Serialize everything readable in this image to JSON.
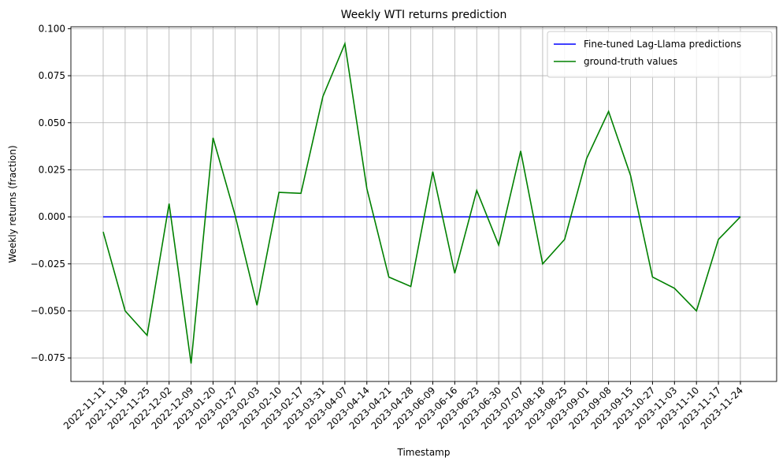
{
  "chart_data": {
    "type": "line",
    "title": "Weekly WTI returns prediction",
    "xlabel": "Timestamp",
    "ylabel": "Weekly returns (fraction)",
    "categories": [
      "2022-11-11",
      "2022-11-18",
      "2022-11-25",
      "2022-12-02",
      "2022-12-09",
      "2023-01-20",
      "2023-01-27",
      "2023-02-03",
      "2023-02-10",
      "2023-02-17",
      "2023-03-31",
      "2023-04-07",
      "2023-04-14",
      "2023-04-21",
      "2023-04-28",
      "2023-06-09",
      "2023-06-16",
      "2023-06-23",
      "2023-06-30",
      "2023-07-07",
      "2023-08-18",
      "2023-08-25",
      "2023-09-01",
      "2023-09-08",
      "2023-09-15",
      "2023-10-27",
      "2023-11-03",
      "2023-11-10",
      "2023-11-17",
      "2023-11-24"
    ],
    "series": [
      {
        "name": "Fine-tuned Lag-Llama predictions",
        "color": "#0000ff",
        "values": [
          0,
          0,
          0,
          0,
          0,
          0,
          0,
          0,
          0,
          0,
          0,
          0,
          0,
          0,
          0,
          0,
          0,
          0,
          0,
          0,
          0,
          0,
          0,
          0,
          0,
          0,
          0,
          0,
          0,
          0
        ]
      },
      {
        "name": "ground-truth values",
        "color": "#008000",
        "values": [
          -0.008,
          -0.05,
          -0.063,
          0.007,
          -0.078,
          0.042,
          0.001,
          -0.047,
          0.013,
          0.0125,
          0.064,
          0.092,
          0.015,
          -0.032,
          -0.037,
          0.024,
          -0.03,
          0.014,
          -0.015,
          0.035,
          -0.025,
          -0.012,
          0.031,
          0.056,
          0.022,
          -0.032,
          -0.038,
          -0.05,
          -0.012,
          0.0
        ]
      }
    ],
    "ylim": [
      -0.0875,
      0.101
    ],
    "yticks": [
      {
        "value": -0.075,
        "label": "−0.075"
      },
      {
        "value": -0.05,
        "label": "−0.050"
      },
      {
        "value": -0.025,
        "label": "−0.025"
      },
      {
        "value": 0,
        "label": "0.000"
      },
      0.025,
      {
        "value": 0.05,
        "label": "0.050"
      },
      0.075,
      {
        "value": 0.1,
        "label": "0.100"
      }
    ],
    "grid": true,
    "legend": "upper right"
  }
}
